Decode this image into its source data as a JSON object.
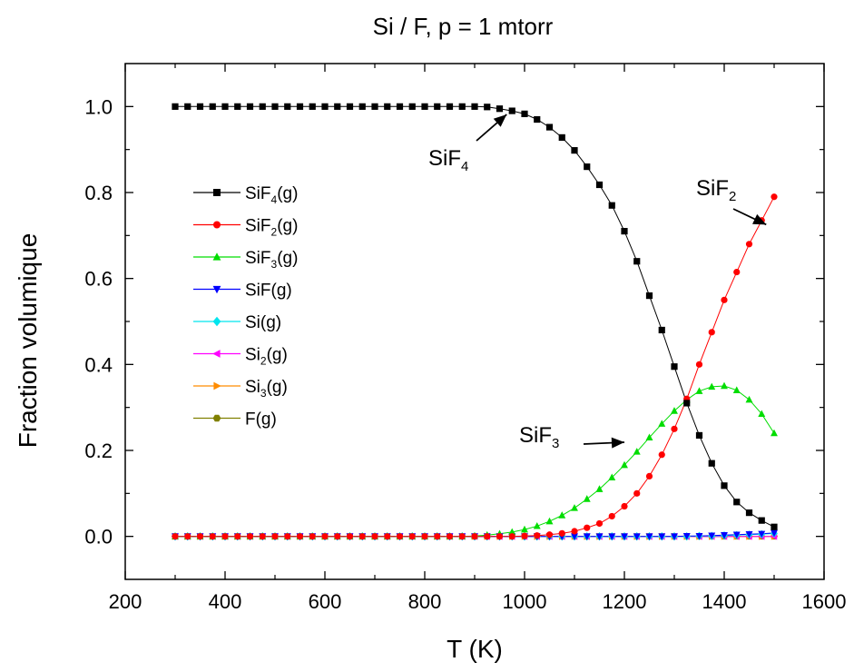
{
  "chart_data": {
    "type": "line",
    "title": "Si / F, p = 1 mtorr",
    "xlabel": "T (K)",
    "ylabel": "Fraction volumique",
    "xlim": [
      200,
      1600
    ],
    "ylim": [
      -0.1,
      1.1
    ],
    "xticks": [
      200,
      400,
      600,
      800,
      1000,
      1200,
      1400,
      1600
    ],
    "yticks": [
      0.0,
      0.2,
      0.4,
      0.6,
      0.8,
      1.0
    ],
    "xtick_labels": [
      "200",
      "400",
      "600",
      "800",
      "1000",
      "1200",
      "1400",
      "1600"
    ],
    "ytick_labels": [
      "0.0",
      "0.2",
      "0.4",
      "0.6",
      "0.8",
      "1.0"
    ],
    "grid": false,
    "legend_position": "left-center",
    "x": [
      300,
      325,
      350,
      375,
      400,
      425,
      450,
      475,
      500,
      525,
      550,
      575,
      600,
      625,
      650,
      675,
      700,
      725,
      750,
      775,
      800,
      825,
      850,
      875,
      900,
      925,
      950,
      975,
      1000,
      1025,
      1050,
      1075,
      1100,
      1125,
      1150,
      1175,
      1200,
      1225,
      1250,
      1275,
      1300,
      1325,
      1350,
      1375,
      1400,
      1425,
      1450,
      1475,
      1500
    ],
    "series": [
      {
        "name": "SiF4(g)",
        "label_base": "SiF",
        "label_sub": "4",
        "label_suffix": "(g)",
        "color": "#000000",
        "marker": "square",
        "values": [
          1,
          1,
          1,
          1,
          1,
          1,
          1,
          1,
          1,
          1,
          1,
          1,
          1,
          1,
          1,
          1,
          1,
          1,
          1,
          1,
          1,
          1,
          1,
          1,
          1,
          0.999,
          0.995,
          0.99,
          0.983,
          0.97,
          0.952,
          0.928,
          0.898,
          0.86,
          0.818,
          0.77,
          0.71,
          0.64,
          0.56,
          0.48,
          0.395,
          0.31,
          0.235,
          0.17,
          0.118,
          0.08,
          0.055,
          0.037,
          0.022
        ]
      },
      {
        "name": "SiF2(g)",
        "label_base": "SiF",
        "label_sub": "2",
        "label_suffix": "(g)",
        "color": "#ff0000",
        "marker": "circle",
        "values": [
          0,
          0,
          0,
          0,
          0,
          0,
          0,
          0,
          0,
          0,
          0,
          0,
          0,
          0,
          0,
          0,
          0,
          0,
          0,
          0,
          0,
          0,
          0,
          0,
          0,
          0,
          0,
          0,
          0.001,
          0.002,
          0.004,
          0.007,
          0.012,
          0.02,
          0.03,
          0.047,
          0.07,
          0.1,
          0.14,
          0.19,
          0.25,
          0.32,
          0.4,
          0.475,
          0.55,
          0.615,
          0.68,
          0.735,
          0.79
        ]
      },
      {
        "name": "SiF3(g)",
        "label_base": "SiF",
        "label_sub": "3",
        "label_suffix": "(g)",
        "color": "#00dd00",
        "marker": "triangle-up",
        "values": [
          0,
          0,
          0,
          0,
          0,
          0,
          0,
          0,
          0,
          0,
          0,
          0,
          0,
          0,
          0,
          0,
          0,
          0,
          0,
          0,
          0,
          0,
          0,
          0,
          0.001,
          0.003,
          0.006,
          0.01,
          0.016,
          0.024,
          0.035,
          0.049,
          0.066,
          0.087,
          0.11,
          0.137,
          0.166,
          0.197,
          0.23,
          0.262,
          0.292,
          0.318,
          0.338,
          0.348,
          0.35,
          0.34,
          0.318,
          0.285,
          0.24
        ]
      },
      {
        "name": "SiF(g)",
        "label_base": "SiF",
        "label_sub": "",
        "label_suffix": "(g)",
        "color": "#0000ff",
        "marker": "triangle-down",
        "values": [
          0,
          0,
          0,
          0,
          0,
          0,
          0,
          0,
          0,
          0,
          0,
          0,
          0,
          0,
          0,
          0,
          0,
          0,
          0,
          0,
          0,
          0,
          0,
          0,
          0,
          0,
          0,
          0,
          0,
          0,
          0,
          0,
          0,
          0,
          0,
          0,
          0,
          0,
          0,
          0,
          0,
          0.001,
          0.001,
          0.002,
          0.003,
          0.004,
          0.005,
          0.006,
          0.008
        ]
      },
      {
        "name": "Si(g)",
        "label_base": "Si",
        "label_sub": "",
        "label_suffix": "(g)",
        "color": "#00e5ee",
        "marker": "diamond",
        "values": [
          0,
          0,
          0,
          0,
          0,
          0,
          0,
          0,
          0,
          0,
          0,
          0,
          0,
          0,
          0,
          0,
          0,
          0,
          0,
          0,
          0,
          0,
          0,
          0,
          0,
          0,
          0,
          0,
          0,
          0,
          0,
          0,
          0,
          0,
          0,
          0,
          0,
          0,
          0,
          0,
          0,
          0,
          0.001,
          0.001,
          0.002,
          0.003,
          0.004,
          0.005,
          0.007
        ]
      },
      {
        "name": "Si2(g)",
        "label_base": "Si",
        "label_sub": "2",
        "label_suffix": "(g)",
        "color": "#ff00ff",
        "marker": "triangle-left",
        "values": [
          0,
          0,
          0,
          0,
          0,
          0,
          0,
          0,
          0,
          0,
          0,
          0,
          0,
          0,
          0,
          0,
          0,
          0,
          0,
          0,
          0,
          0,
          0,
          0,
          0,
          0,
          0,
          0,
          0,
          0,
          0,
          0,
          0,
          0,
          0,
          0,
          0,
          0,
          0,
          0,
          0,
          0,
          0,
          0,
          0,
          0,
          0,
          0,
          0
        ]
      },
      {
        "name": "Si3(g)",
        "label_base": "Si",
        "label_sub": "3",
        "label_suffix": "(g)",
        "color": "#ff8c00",
        "marker": "triangle-right",
        "values": [
          0,
          0,
          0,
          0,
          0,
          0,
          0,
          0,
          0,
          0,
          0,
          0,
          0,
          0,
          0,
          0,
          0,
          0,
          0,
          0,
          0,
          0,
          0,
          0,
          0,
          0,
          0,
          0,
          0,
          0,
          0,
          0,
          0,
          0,
          0,
          0,
          0,
          0,
          0,
          0,
          0,
          0,
          0,
          0,
          0,
          0,
          0,
          0,
          0
        ]
      },
      {
        "name": "F(g)",
        "label_base": "F",
        "label_sub": "",
        "label_suffix": "(g)",
        "color": "#808000",
        "marker": "hexagon",
        "values": [
          0,
          0,
          0,
          0,
          0,
          0,
          0,
          0,
          0,
          0,
          0,
          0,
          0,
          0,
          0,
          0,
          0,
          0,
          0,
          0,
          0,
          0,
          0,
          0,
          0,
          0,
          0,
          0,
          0,
          0,
          0,
          0,
          0,
          0,
          0,
          0,
          0,
          0,
          0,
          0,
          0,
          0,
          0,
          0,
          0,
          0,
          0,
          0,
          0
        ]
      }
    ],
    "annotations": [
      {
        "text_base": "SiF",
        "text_sub": "4",
        "point_x": 975,
        "point_y": 0.99
      },
      {
        "text_base": "SiF",
        "text_sub": "2",
        "point_x": 1475,
        "point_y": 0.7
      },
      {
        "text_base": "SiF",
        "text_sub": "3",
        "point_x": 1225,
        "point_y": 0.22
      }
    ]
  }
}
